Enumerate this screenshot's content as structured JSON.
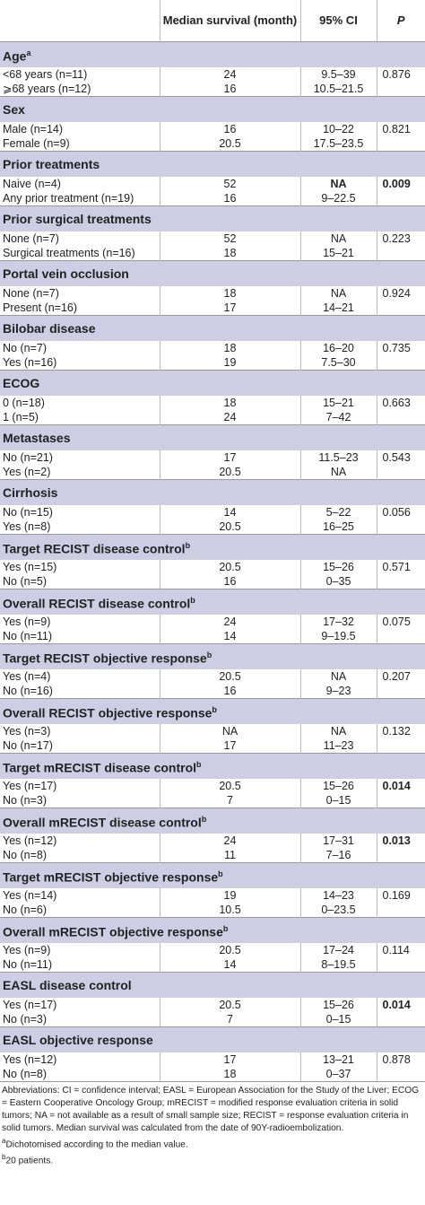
{
  "header": {
    "cells": [
      "",
      "Median survival (month)",
      "95% CI",
      "P"
    ]
  },
  "sections": [
    {
      "title": "Age",
      "note": "a",
      "rows": [
        {
          "cells": [
            "<68 years (n=11)",
            "24",
            "9.5–39",
            "0.876"
          ]
        },
        {
          "cells": [
            "⩾68 years (n=12)",
            "16",
            "10.5–21.5",
            ""
          ]
        }
      ]
    },
    {
      "title": "Sex",
      "rows": [
        {
          "cells": [
            "Male (n=14)",
            "16",
            "10–22",
            "0.821"
          ]
        },
        {
          "cells": [
            "Female (n=9)",
            "20.5",
            "17.5–23.5",
            ""
          ]
        }
      ]
    },
    {
      "title": "Prior treatments",
      "rows": [
        {
          "cells": [
            "Naive (n=4)",
            "52",
            "NA",
            "0.009"
          ],
          "bold": [
            2,
            3
          ]
        },
        {
          "cells": [
            "Any prior treatment (n=19)",
            "16",
            "9–22.5",
            ""
          ]
        }
      ]
    },
    {
      "title": "Prior surgical treatments",
      "rows": [
        {
          "cells": [
            "None (n=7)",
            "52",
            "NA",
            "0.223"
          ]
        },
        {
          "cells": [
            "Surgical treatments (n=16)",
            "18",
            "15–21",
            ""
          ]
        }
      ]
    },
    {
      "title": "Portal vein occlusion",
      "rows": [
        {
          "cells": [
            "None (n=7)",
            "18",
            "NA",
            "0.924"
          ]
        },
        {
          "cells": [
            "Present (n=16)",
            "17",
            "14–21",
            ""
          ]
        }
      ]
    },
    {
      "title": "Bilobar disease",
      "rows": [
        {
          "cells": [
            "No (n=7)",
            "18",
            "16–20",
            "0.735"
          ]
        },
        {
          "cells": [
            "Yes (n=16)",
            "19",
            "7.5–30",
            ""
          ]
        }
      ]
    },
    {
      "title": "ECOG",
      "rows": [
        {
          "cells": [
            "0 (n=18)",
            "18",
            "15–21",
            "0.663"
          ]
        },
        {
          "cells": [
            "1 (n=5)",
            "24",
            "7–42",
            ""
          ]
        }
      ]
    },
    {
      "title": "Metastases",
      "rows": [
        {
          "cells": [
            "No (n=21)",
            "17",
            "11.5–23",
            "0.543"
          ]
        },
        {
          "cells": [
            "Yes (n=2)",
            "20.5",
            "NA",
            ""
          ]
        }
      ]
    },
    {
      "title": "Cirrhosis",
      "rows": [
        {
          "cells": [
            "No (n=15)",
            "14",
            "5–22",
            "0.056"
          ]
        },
        {
          "cells": [
            "Yes (n=8)",
            "20.5",
            "16–25",
            ""
          ]
        }
      ]
    },
    {
      "title": "Target RECIST disease control",
      "note": "b",
      "rows": [
        {
          "cells": [
            "Yes (n=15)",
            "20.5",
            "15–26",
            "0.571"
          ]
        },
        {
          "cells": [
            "No (n=5)",
            "16",
            "0–35",
            ""
          ]
        }
      ]
    },
    {
      "title": "Overall RECIST disease control",
      "note": "b",
      "rows": [
        {
          "cells": [
            "Yes (n=9)",
            "24",
            "17–32",
            "0.075"
          ]
        },
        {
          "cells": [
            "No (n=11)",
            "14",
            "9–19.5",
            ""
          ]
        }
      ]
    },
    {
      "title": "Target RECIST objective response",
      "note": "b",
      "rows": [
        {
          "cells": [
            "Yes (n=4)",
            "20.5",
            "NA",
            "0.207"
          ]
        },
        {
          "cells": [
            "No (n=16)",
            "16",
            "9–23",
            ""
          ]
        }
      ]
    },
    {
      "title": "Overall RECIST objective response",
      "note": "b",
      "rows": [
        {
          "cells": [
            "Yes (n=3)",
            "NA",
            "NA",
            "0.132"
          ]
        },
        {
          "cells": [
            "No (n=17)",
            "17",
            "11–23",
            ""
          ]
        }
      ]
    },
    {
      "title": "Target mRECIST disease control",
      "note": "b",
      "rows": [
        {
          "cells": [
            "Yes (n=17)",
            "20.5",
            "15–26",
            "0.014"
          ],
          "bold": [
            3
          ]
        },
        {
          "cells": [
            "No (n=3)",
            "7",
            "0–15",
            ""
          ]
        }
      ]
    },
    {
      "title": "Overall mRECIST disease control",
      "note": "b",
      "rows": [
        {
          "cells": [
            "Yes (n=12)",
            "24",
            "17–31",
            "0.013"
          ],
          "bold": [
            3
          ]
        },
        {
          "cells": [
            "No (n=8)",
            "11",
            "7–16",
            ""
          ]
        }
      ]
    },
    {
      "title": "Target mRECIST objective response",
      "note": "b",
      "rows": [
        {
          "cells": [
            "Yes (n=14)",
            "19",
            "14–23",
            "0.169"
          ]
        },
        {
          "cells": [
            "No (n=6)",
            "10.5",
            "0–23.5",
            ""
          ]
        }
      ]
    },
    {
      "title": "Overall mRECIST objective response",
      "note": "b",
      "rows": [
        {
          "cells": [
            "Yes (n=9)",
            "20.5",
            "17–24",
            "0.114"
          ]
        },
        {
          "cells": [
            "No (n=11)",
            "14",
            "8–19.5",
            ""
          ]
        }
      ]
    },
    {
      "title": "EASL disease control",
      "rows": [
        {
          "cells": [
            "Yes (n=17)",
            "20.5",
            "15–26",
            "0.014"
          ],
          "bold": [
            3
          ]
        },
        {
          "cells": [
            "No (n=3)",
            "7",
            "0–15",
            ""
          ]
        }
      ]
    },
    {
      "title": "EASL objective response",
      "rows": [
        {
          "cells": [
            "Yes (n=12)",
            "17",
            "13–21",
            "0.878"
          ]
        },
        {
          "cells": [
            "No (n=8)",
            "18",
            "0–37",
            ""
          ]
        }
      ]
    }
  ],
  "footnotes": [
    {
      "text": "Abbreviations: CI = confidence interval; EASL = European Association for the Study of the Liver; ECOG = Eastern Cooperative Oncology Group; mRECIST = modified response evaluation criteria in solid tumors; NA = not available as a result of small sample size; RECIST = response evaluation criteria in solid tumors. Median survival was calculated from the date of 90Y-radioembolization."
    },
    {
      "mark": "a",
      "text": "Dichotomised according to the median value."
    },
    {
      "mark": "b",
      "text": "20 patients."
    }
  ]
}
